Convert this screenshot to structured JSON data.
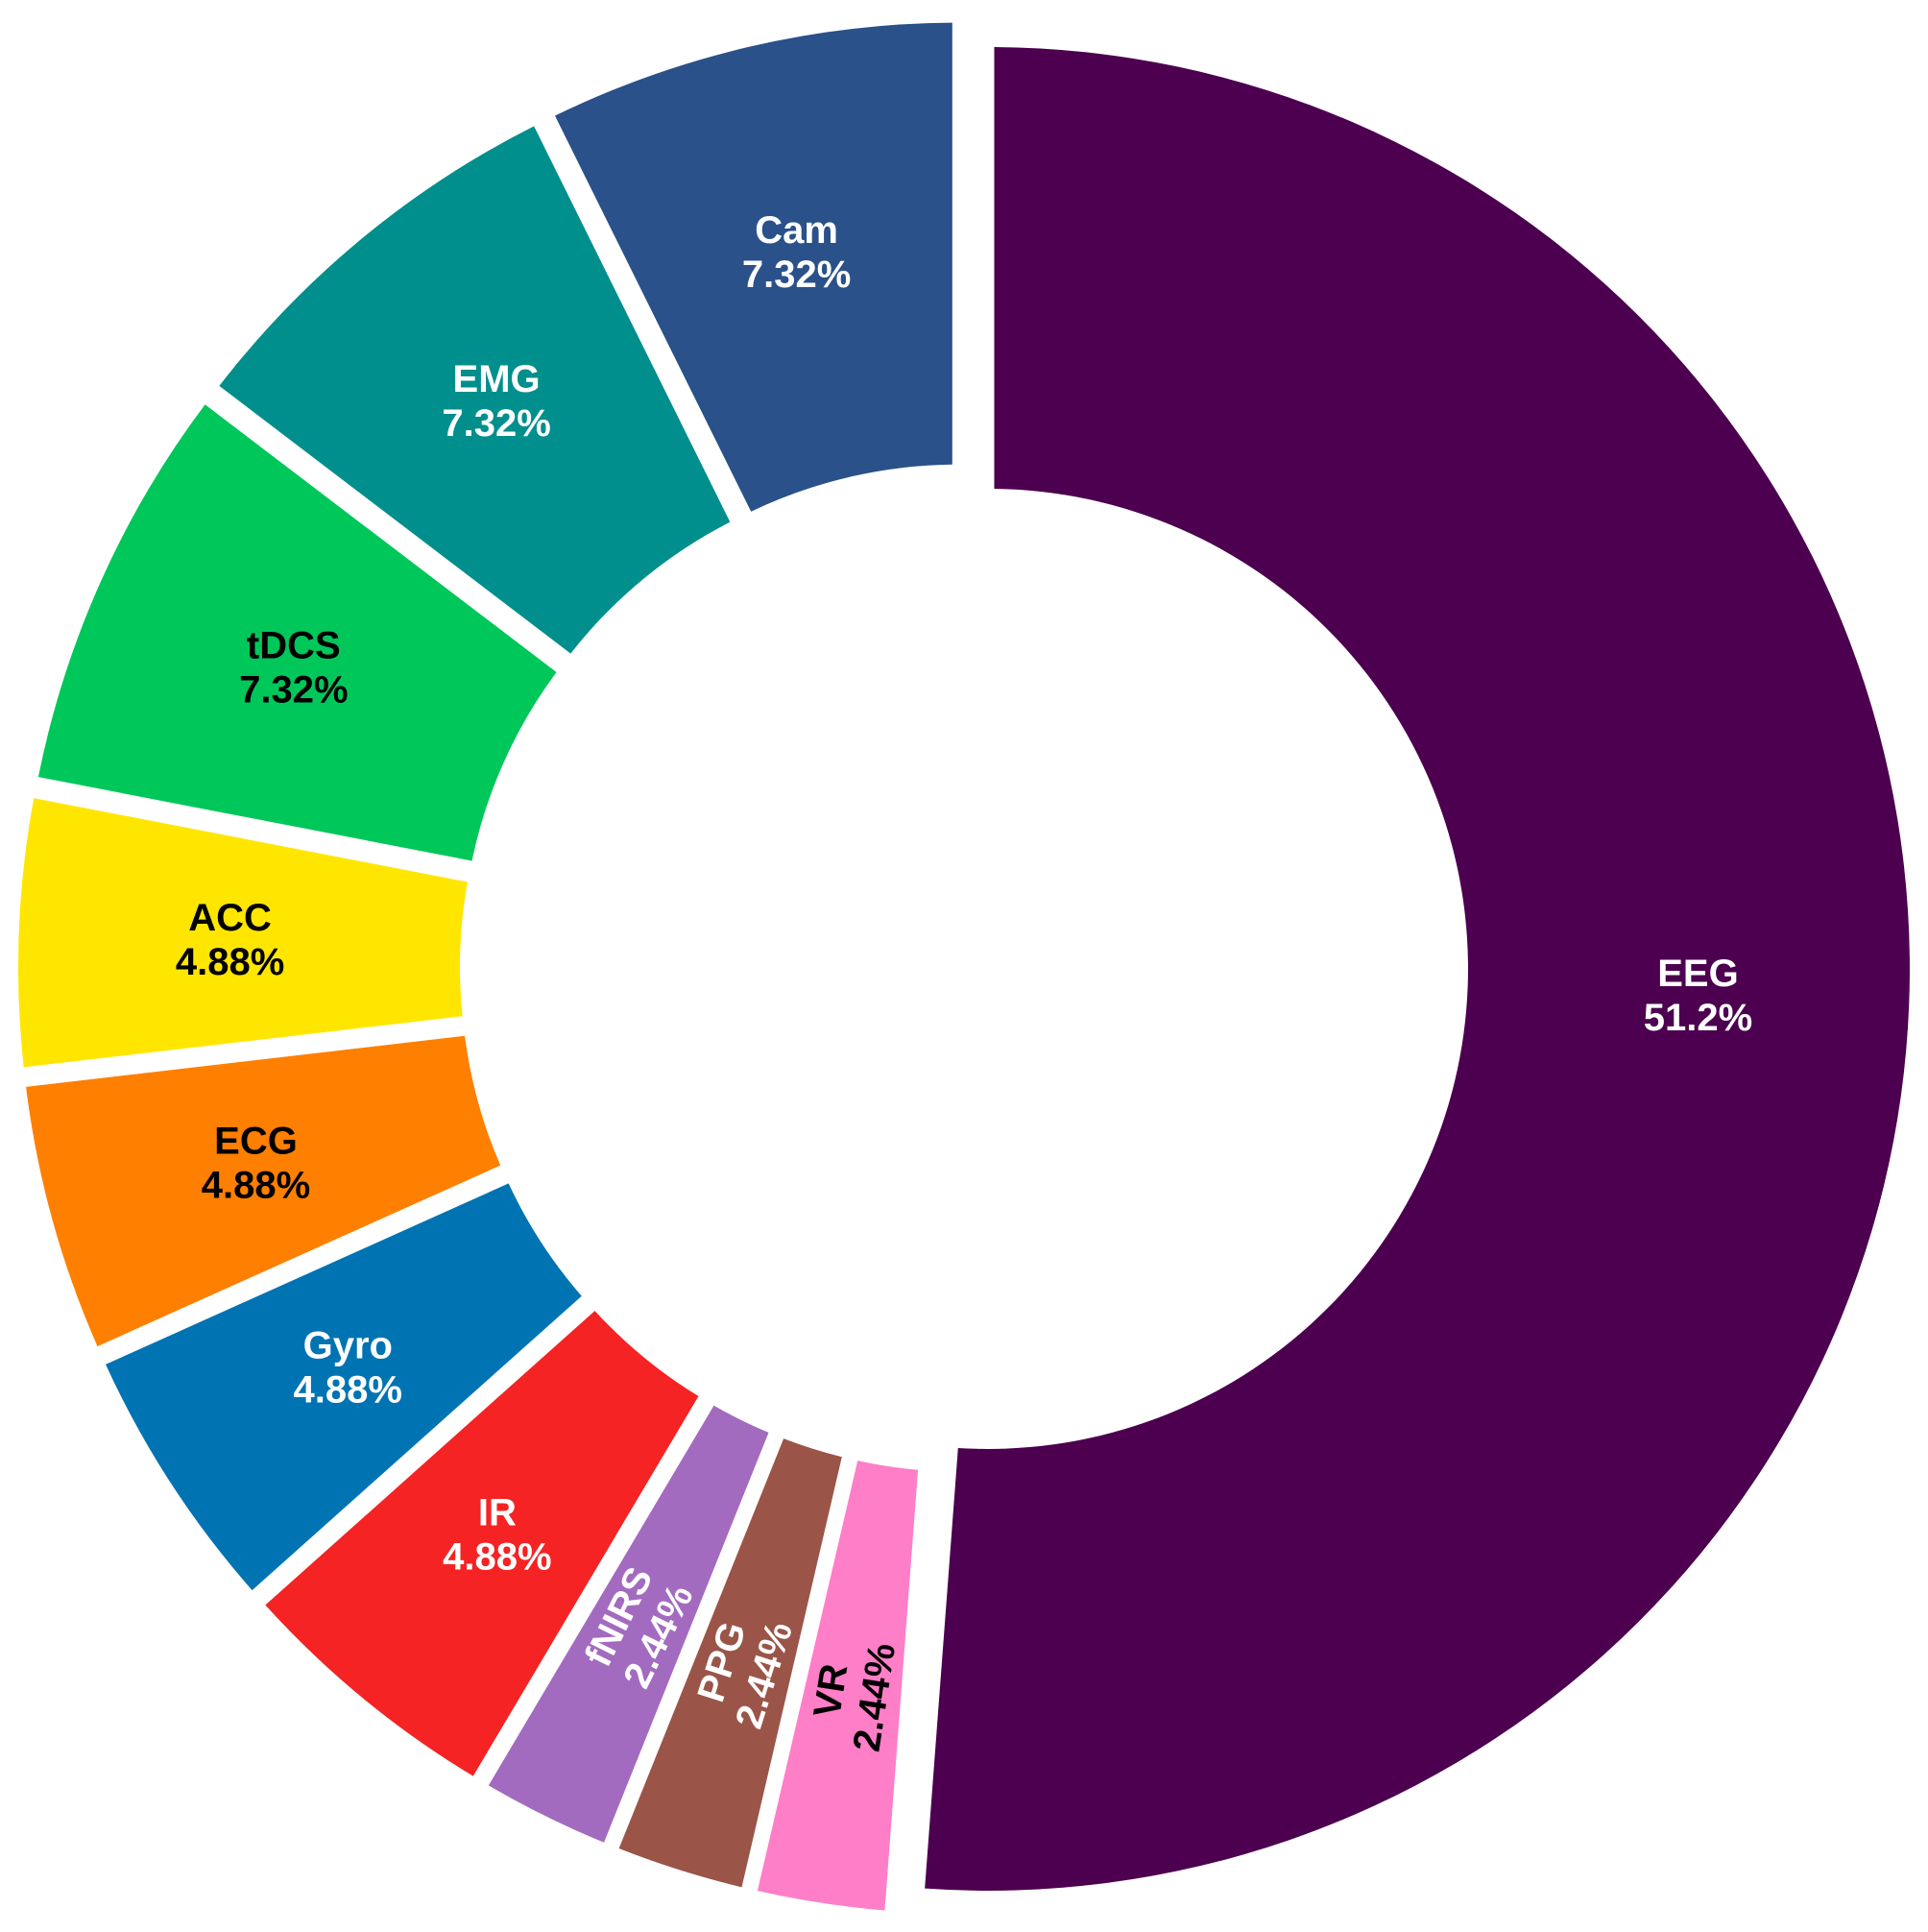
{
  "chart_data": {
    "type": "pie",
    "variant": "donut",
    "start": "top, clockwise",
    "slices": [
      {
        "label": "EEG",
        "percent_text": "51.2%",
        "value": 51.2,
        "color": "#4c004f",
        "text_color": "#ffffff"
      },
      {
        "label": "VR",
        "percent_text": "2.44%",
        "value": 2.44,
        "color": "#ff7ec8",
        "text_color": "#000000",
        "rotated": true
      },
      {
        "label": "PPG",
        "percent_text": "2.44%",
        "value": 2.44,
        "color": "#9a5548",
        "text_color": "#ffffff",
        "rotated": true
      },
      {
        "label": "fNIRS",
        "percent_text": "2.44%",
        "value": 2.44,
        "color": "#a36bc0",
        "text_color": "#ffffff",
        "rotated": true
      },
      {
        "label": "IR",
        "percent_text": "4.88%",
        "value": 4.88,
        "color": "#f52323",
        "text_color": "#ffffff"
      },
      {
        "label": "Gyro",
        "percent_text": "4.88%",
        "value": 4.88,
        "color": "#0073b3",
        "text_color": "#ffffff"
      },
      {
        "label": "ECG",
        "percent_text": "4.88%",
        "value": 4.88,
        "color": "#ff7f00",
        "text_color": "#000000"
      },
      {
        "label": "ACC",
        "percent_text": "4.88%",
        "value": 4.88,
        "color": "#ffe600",
        "text_color": "#000000"
      },
      {
        "label": "tDCS",
        "percent_text": "7.32%",
        "value": 7.32,
        "color": "#00c75a",
        "text_color": "#000000"
      },
      {
        "label": "EMG",
        "percent_text": "7.32%",
        "value": 7.32,
        "color": "#008f8c",
        "text_color": "#ffffff"
      },
      {
        "label": "Cam",
        "percent_text": "7.32%",
        "value": 7.32,
        "color": "#2a5189",
        "text_color": "#ffffff"
      }
    ]
  }
}
